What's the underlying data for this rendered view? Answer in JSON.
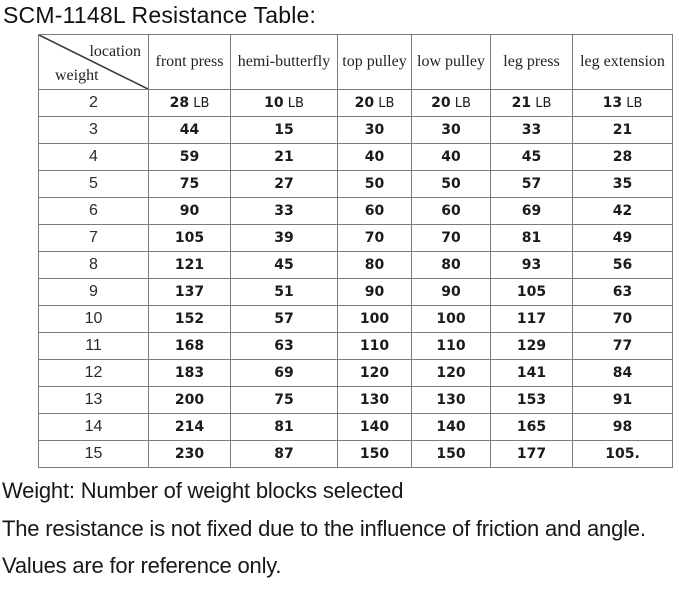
{
  "title": "SCM-1148L Resistance Table:",
  "table": {
    "corner": {
      "top_label": "location",
      "bottom_label": "weight"
    },
    "columns": [
      "front press",
      "hemi-butterfly",
      "top pulley",
      "low pulley",
      "leg press",
      "leg extension"
    ],
    "rows": [
      {
        "weight": "2",
        "unit": "LB",
        "values": [
          "28",
          "10",
          "20",
          "20",
          "21",
          "13"
        ]
      },
      {
        "weight": "3",
        "unit": "",
        "values": [
          "44",
          "15",
          "30",
          "30",
          "33",
          "21"
        ]
      },
      {
        "weight": "4",
        "unit": "",
        "values": [
          "59",
          "21",
          "40",
          "40",
          "45",
          "28"
        ]
      },
      {
        "weight": "5",
        "unit": "",
        "values": [
          "75",
          "27",
          "50",
          "50",
          "57",
          "35"
        ]
      },
      {
        "weight": "6",
        "unit": "",
        "values": [
          "90",
          "33",
          "60",
          "60",
          "69",
          "42"
        ]
      },
      {
        "weight": "7",
        "unit": "",
        "values": [
          "105",
          "39",
          "70",
          "70",
          "81",
          "49"
        ]
      },
      {
        "weight": "8",
        "unit": "",
        "values": [
          "121",
          "45",
          "80",
          "80",
          "93",
          "56"
        ]
      },
      {
        "weight": "9",
        "unit": "",
        "values": [
          "137",
          "51",
          "90",
          "90",
          "105",
          "63"
        ]
      },
      {
        "weight": "10",
        "unit": "",
        "values": [
          "152",
          "57",
          "100",
          "100",
          "117",
          "70"
        ]
      },
      {
        "weight": "11",
        "unit": "",
        "values": [
          "168",
          "63",
          "110",
          "110",
          "129",
          "77"
        ]
      },
      {
        "weight": "12",
        "unit": "",
        "values": [
          "183",
          "69",
          "120",
          "120",
          "141",
          "84"
        ]
      },
      {
        "weight": "13",
        "unit": "",
        "values": [
          "200",
          "75",
          "130",
          "130",
          "153",
          "91"
        ]
      },
      {
        "weight": "14",
        "unit": "",
        "values": [
          "214",
          "81",
          "140",
          "140",
          "165",
          "98"
        ]
      },
      {
        "weight": "15",
        "unit": "",
        "values": [
          "230",
          "87",
          "150",
          "150",
          "177",
          "105."
        ]
      }
    ]
  },
  "footnotes": {
    "weight_note": "Weight: Number of weight blocks selected",
    "disclaimer": "The resistance is not fixed due to the influence of friction and angle. Values are for reference only."
  }
}
